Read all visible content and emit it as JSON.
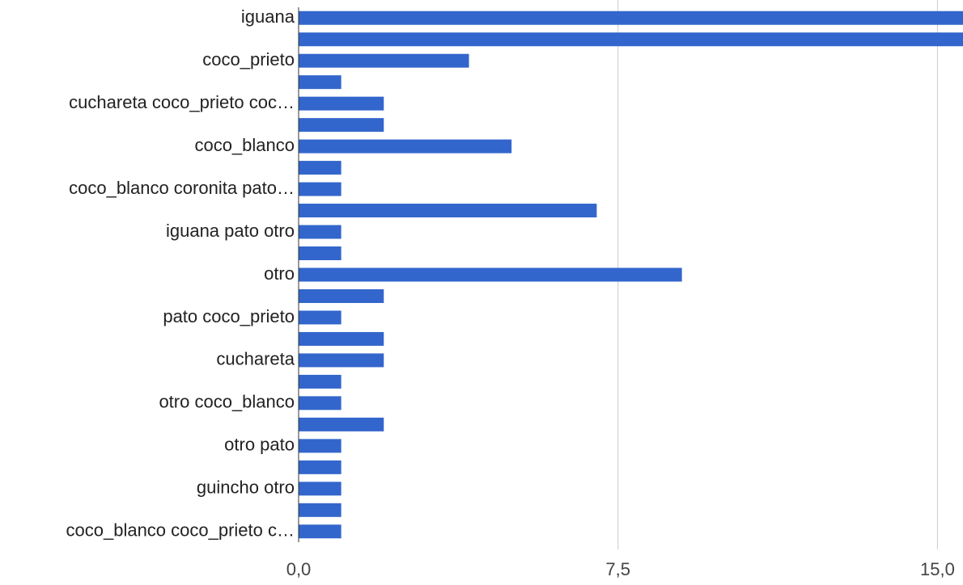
{
  "chart_data": {
    "type": "bar",
    "orientation": "horizontal",
    "color": "#3366cc",
    "categories": [
      "iguana",
      null,
      "coco_prieto",
      null,
      "cuchareta coco_prieto coc…",
      null,
      "coco_blanco",
      null,
      "coco_blanco coronita pato…",
      null,
      "iguana pato otro",
      null,
      "otro",
      null,
      "pato coco_prieto",
      null,
      "cuchareta",
      null,
      "otro coco_blanco",
      null,
      "otro pato",
      null,
      "guincho otro",
      null,
      "coco_blanco coco_prieto c…"
    ],
    "values": [
      16,
      16,
      4,
      1,
      2,
      2,
      5,
      1,
      1,
      7,
      1,
      1,
      9,
      2,
      1,
      2,
      2,
      1,
      1,
      2,
      1,
      1,
      1,
      1,
      1
    ],
    "xlim": [
      0,
      15.6
    ],
    "xticks": [
      {
        "value": 0,
        "label": "0,0"
      },
      {
        "value": 7.5,
        "label": "7,5"
      },
      {
        "value": 15,
        "label": "15,0"
      }
    ],
    "grid": true
  }
}
